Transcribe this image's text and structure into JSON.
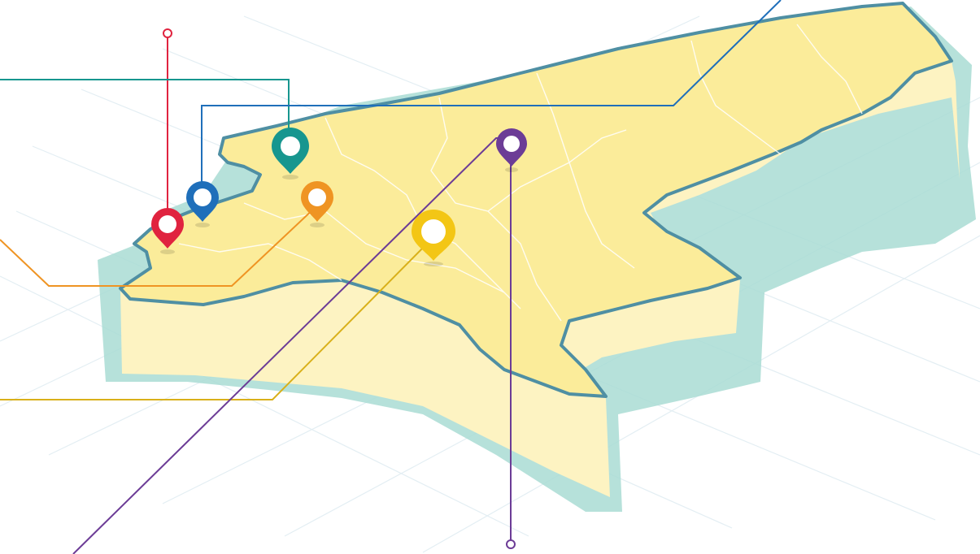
{
  "map": {
    "caption": "",
    "colors": {
      "land": "#fbec9a",
      "land_side": "#fdf3c2",
      "shadow": "#a9dcd4",
      "border": "#4f8fa3",
      "district_lines": "#ffffff",
      "grid": "#e3eef3"
    },
    "markers": [
      {
        "id": "red",
        "color": "#e0233f"
      },
      {
        "id": "blue",
        "color": "#1f6fba"
      },
      {
        "id": "teal",
        "color": "#17968f"
      },
      {
        "id": "orange",
        "color": "#ef9423"
      },
      {
        "id": "yellow",
        "color": "#f3c615"
      },
      {
        "id": "purple",
        "color": "#6c3c96"
      }
    ]
  }
}
